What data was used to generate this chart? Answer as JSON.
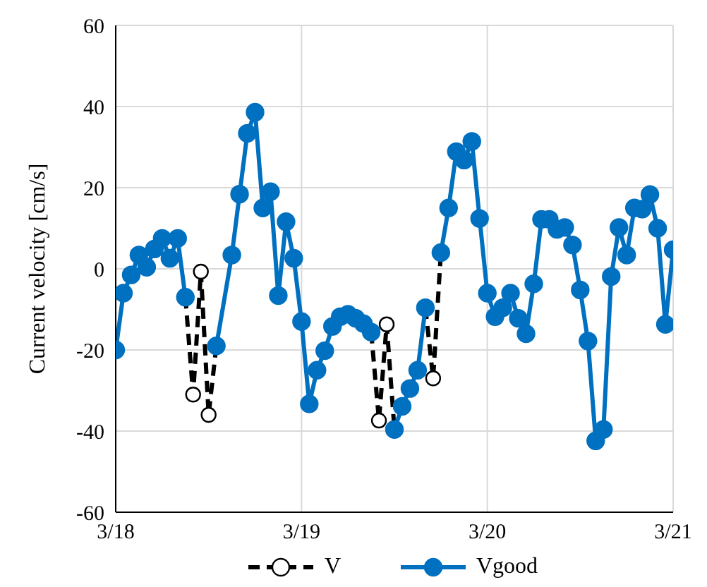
{
  "chart_data": {
    "type": "line",
    "ylabel": "Current velocity [cm/s]",
    "xlim": [
      "--03-18",
      "--03-21"
    ],
    "xticks": [
      {
        "value": "--03-18",
        "label": "3/18"
      },
      {
        "value": "--03-19",
        "label": "3/19"
      },
      {
        "value": "--03-20",
        "label": "3/20"
      },
      {
        "value": "--03-21",
        "label": "3/21"
      }
    ],
    "ylim": [
      -60,
      60
    ],
    "yticks": [
      -60,
      -40,
      -20,
      0,
      20,
      40,
      60
    ],
    "grid": true,
    "legend": "bottom",
    "series": [
      {
        "name": "V",
        "color": "#000000",
        "marker": "circle",
        "line_style": "dashed",
        "x": [
          "--03-18T09:00",
          "--03-18T10:00",
          "--03-18T11:00",
          "--03-18T12:00",
          "--03-18T13:00",
          "--03-19T09:00",
          "--03-19T10:00",
          "--03-19T11:00",
          "--03-19T12:00",
          "--03-19T16:00",
          "--03-19T17:00",
          "--03-19T18:00"
        ],
        "values": [
          -7,
          -31,
          -0.7,
          -36,
          -19,
          -15.6,
          -37.4,
          -13.7,
          -39.6,
          -9.6,
          -27,
          4
        ]
      },
      {
        "name": "Vgood",
        "color": "#0070c0",
        "marker": "circle",
        "line_style": "solid",
        "x": [
          "--03-18T00:00",
          "--03-18T01:00",
          "--03-18T02:00",
          "--03-18T03:00",
          "--03-18T04:00",
          "--03-18T05:00",
          "--03-18T06:00",
          "--03-18T07:00",
          "--03-18T08:00",
          "--03-18T09:00",
          "--03-18T10:00",
          "--03-18T11:00",
          "--03-18T12:00",
          "--03-18T13:00",
          "--03-18T15:00",
          "--03-18T16:00",
          "--03-18T17:00",
          "--03-18T18:00",
          "--03-18T19:00",
          "--03-18T20:00",
          "--03-18T21:00",
          "--03-18T22:00",
          "--03-18T23:00",
          "--03-19T00:00",
          "--03-19T01:00",
          "--03-19T02:00",
          "--03-19T03:00",
          "--03-19T04:00",
          "--03-19T05:00",
          "--03-19T06:00",
          "--03-19T07:00",
          "--03-19T08:00",
          "--03-19T09:00",
          "--03-19T10:00",
          "--03-19T11:00",
          "--03-19T12:00",
          "--03-19T13:00",
          "--03-19T14:00",
          "--03-19T15:00",
          "--03-19T16:00",
          "--03-19T17:00",
          "--03-19T18:00",
          "--03-19T19:00",
          "--03-19T20:00",
          "--03-19T21:00",
          "--03-19T22:00",
          "--03-19T23:00",
          "--03-20T00:00",
          "--03-20T01:00",
          "--03-20T02:00",
          "--03-20T03:00",
          "--03-20T04:00",
          "--03-20T05:00",
          "--03-20T06:00",
          "--03-20T07:00",
          "--03-20T08:00",
          "--03-20T09:00",
          "--03-20T10:00",
          "--03-20T11:00",
          "--03-20T12:00",
          "--03-20T13:00",
          "--03-20T14:00",
          "--03-20T15:00",
          "--03-20T16:00",
          "--03-20T17:00",
          "--03-20T18:00",
          "--03-20T19:00",
          "--03-20T20:00",
          "--03-20T21:00",
          "--03-20T22:00",
          "--03-20T23:00",
          "--03-21T00:00"
        ],
        "values": [
          -20,
          -6,
          -1.5,
          3.4,
          0.4,
          4.9,
          7.5,
          2.6,
          7.5,
          -7,
          null,
          null,
          null,
          -19,
          3.4,
          18.4,
          33.4,
          38.6,
          15,
          19,
          -6.6,
          11.6,
          2.6,
          -13,
          -33.3,
          -25,
          -20.2,
          -14.2,
          -11.8,
          -11.2,
          -12.2,
          -13.5,
          -15.6,
          null,
          null,
          -39.6,
          -33.9,
          -29.5,
          -25,
          -9.6,
          null,
          4,
          15,
          28.9,
          26.8,
          31.4,
          12.4,
          -6,
          -11.8,
          -9.6,
          -6,
          -12.2,
          -16,
          -3.7,
          12.2,
          12.2,
          9.7,
          10.2,
          5.9,
          -5.2,
          -17.8,
          -42.4,
          -39.6,
          -1.9,
          10.2,
          3.4,
          15,
          14.7,
          18.3,
          10,
          -13.7,
          4.7
        ]
      }
    ]
  }
}
